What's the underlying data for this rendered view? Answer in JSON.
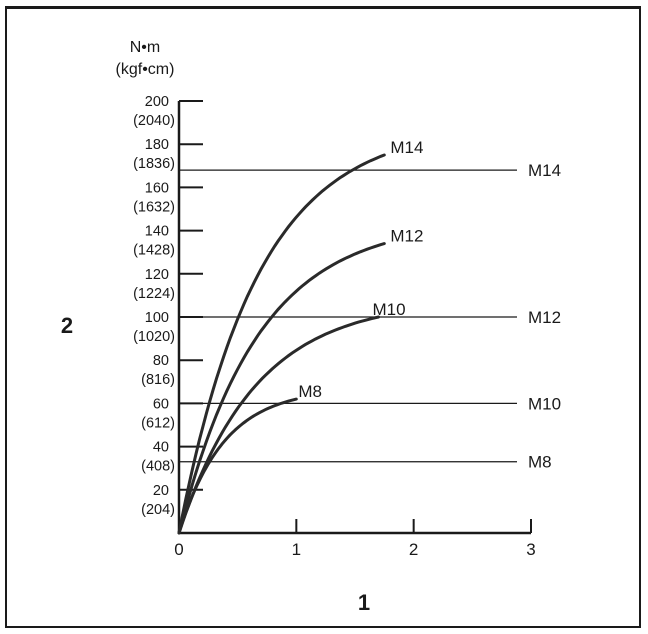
{
  "chart_data": {
    "type": "line",
    "y_unit": {
      "line1": "N•m",
      "line2": "(kgf•cm)"
    },
    "y_ticks": [
      {
        "value": 200,
        "label": "200",
        "sublabel": "(2040)"
      },
      {
        "value": 180,
        "label": "180",
        "sublabel": "(1836)"
      },
      {
        "value": 160,
        "label": "160",
        "sublabel": "(1632)"
      },
      {
        "value": 140,
        "label": "140",
        "sublabel": "(1428)"
      },
      {
        "value": 120,
        "label": "120",
        "sublabel": "(1224)"
      },
      {
        "value": 100,
        "label": "100",
        "sublabel": "(1020)"
      },
      {
        "value": 80,
        "label": "80",
        "sublabel": "(816)"
      },
      {
        "value": 60,
        "label": "60",
        "sublabel": "(612)"
      },
      {
        "value": 40,
        "label": "40",
        "sublabel": "(408)"
      },
      {
        "value": 20,
        "label": "20",
        "sublabel": "(204)"
      }
    ],
    "x_ticks": [
      {
        "value": 0,
        "label": "0"
      },
      {
        "value": 1,
        "label": "1"
      },
      {
        "value": 2,
        "label": "2"
      },
      {
        "value": 3,
        "label": "3"
      }
    ],
    "xlim": [
      0,
      3
    ],
    "ylim": [
      0,
      200
    ],
    "xlabel": "1",
    "ylabel": "2",
    "curves": [
      {
        "name": "M8",
        "x_end": 1.0,
        "y_end": 62
      },
      {
        "name": "M10",
        "x_end": 1.7,
        "y_end": 100
      },
      {
        "name": "M12",
        "x_end": 1.75,
        "y_end": 134
      },
      {
        "name": "M14",
        "x_end": 1.75,
        "y_end": 175
      }
    ],
    "limit_lines": [
      {
        "name": "M14",
        "value": 168
      },
      {
        "name": "M12",
        "value": 100
      },
      {
        "name": "M10",
        "value": 60
      },
      {
        "name": "M8",
        "value": 33
      }
    ],
    "grid": false
  }
}
